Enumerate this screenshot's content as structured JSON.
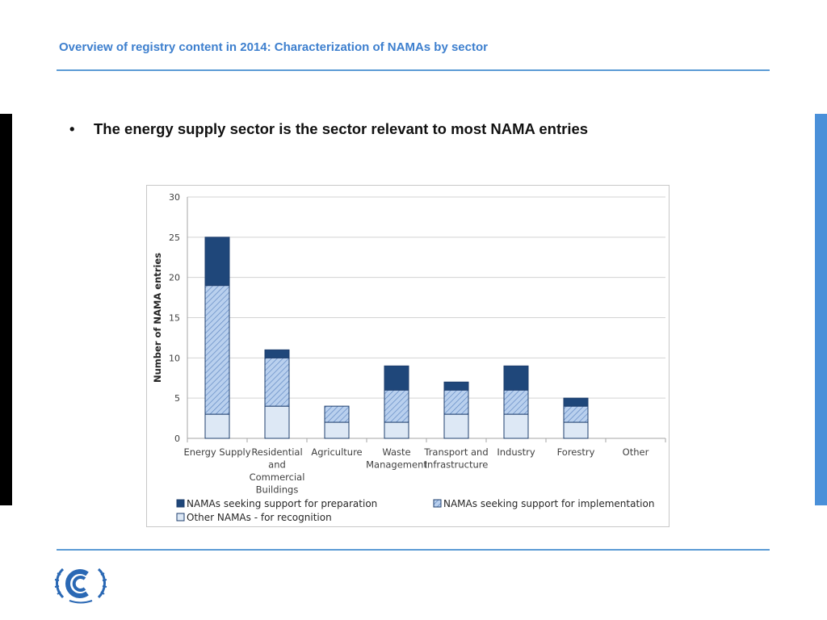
{
  "slide": {
    "title": "Overview of registry content in 2014: Characterization of NAMAs by sector",
    "bullet_marker": "•",
    "bullet_text": "The energy supply sector is the sector relevant to most NAMA entries"
  },
  "colors": {
    "title": "#3d7fce",
    "rule": "#5b9bd5",
    "left_bar": "#000000",
    "right_bar": "#4a90d9",
    "preparation": "#1f477a",
    "implementation": "#a8c3e6",
    "recognition": "#dde8f5"
  },
  "chart_data": {
    "type": "bar",
    "stacked": true,
    "title": "",
    "xlabel": "",
    "ylabel": "Number of NAMA entries",
    "ylim": [
      0,
      30
    ],
    "yticks": [
      0,
      5,
      10,
      15,
      20,
      25,
      30
    ],
    "grid": true,
    "legend_position": "bottom",
    "categories": [
      [
        "Energy Supply"
      ],
      [
        "Residential",
        "and",
        "Commercial",
        "Buildings"
      ],
      [
        "Agriculture"
      ],
      [
        "Waste",
        "Management"
      ],
      [
        "Transport and",
        "Infrastructure"
      ],
      [
        "Industry"
      ],
      [
        "Forestry"
      ],
      [
        "Other"
      ]
    ],
    "series": [
      {
        "name": "Other NAMAs - for recognition",
        "color": "#dde8f5",
        "pattern": "solid",
        "values": [
          3,
          4,
          2,
          2,
          3,
          3,
          2,
          0
        ]
      },
      {
        "name": "NAMAs seeking support for implementation",
        "color": "#a8c3e6",
        "pattern": "hatched",
        "values": [
          16,
          6,
          2,
          4,
          3,
          3,
          2,
          0
        ]
      },
      {
        "name": "NAMAs seeking support for preparation",
        "color": "#1f477a",
        "pattern": "solid",
        "values": [
          6,
          1,
          0,
          3,
          1,
          3,
          1,
          0
        ]
      }
    ],
    "legend_order": [
      2,
      1,
      0
    ]
  }
}
